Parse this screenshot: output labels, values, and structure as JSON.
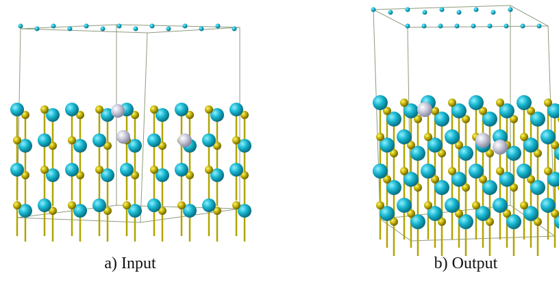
{
  "panels": [
    {
      "caption": "a) Input"
    },
    {
      "caption": "b) Output"
    }
  ]
}
